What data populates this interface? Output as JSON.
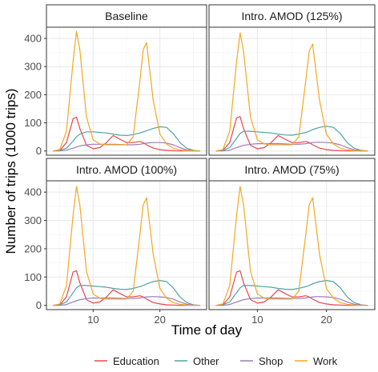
{
  "chart_data": {
    "type": "line",
    "ylabel": "Number of trips (1000 trips)",
    "xlabel": "Time of day",
    "xlim": [
      3,
      27
    ],
    "ylim": [
      -15,
      440
    ],
    "x_ticks": [
      10,
      20
    ],
    "y_ticks": [
      0,
      100,
      200,
      300,
      400
    ],
    "grid": true,
    "legend_position": "bottom",
    "colors": {
      "Education": "#e8474c",
      "Other": "#4fa3a5",
      "Shop": "#9b7bb8",
      "Work": "#f5a623"
    },
    "series_names": [
      "Education",
      "Other",
      "Shop",
      "Work"
    ],
    "x": [
      4,
      5,
      6,
      7,
      7.5,
      8,
      9,
      10,
      11,
      12,
      13,
      14,
      15,
      16,
      17,
      17.5,
      18,
      19,
      20,
      21,
      22,
      23,
      24,
      25,
      26
    ],
    "panels": [
      {
        "title": "Baseline",
        "series": [
          {
            "name": "Education",
            "values": [
              0,
              2,
              30,
              115,
              120,
              80,
              20,
              8,
              12,
              30,
              55,
              42,
              30,
              30,
              34,
              30,
              22,
              10,
              5,
              2,
              1,
              0,
              0,
              0,
              0
            ]
          },
          {
            "name": "Other",
            "values": [
              0,
              2,
              10,
              35,
              50,
              60,
              68,
              68,
              66,
              64,
              60,
              56,
              55,
              58,
              64,
              68,
              72,
              80,
              86,
              84,
              62,
              30,
              10,
              2,
              0
            ]
          },
          {
            "name": "Shop",
            "values": [
              0,
              0,
              3,
              10,
              14,
              18,
              22,
              24,
              24,
              24,
              24,
              23,
              22,
              22,
              24,
              26,
              28,
              30,
              30,
              28,
              22,
              12,
              4,
              1,
              0
            ]
          },
          {
            "name": "Work",
            "values": [
              0,
              5,
              70,
              320,
              425,
              360,
              120,
              40,
              25,
              22,
              22,
              22,
              22,
              50,
              250,
              360,
              385,
              180,
              60,
              25,
              10,
              4,
              1,
              0,
              0
            ]
          }
        ]
      },
      {
        "title": "Intro. AMOD (125%)",
        "series": [
          {
            "name": "Education",
            "values": [
              0,
              2,
              30,
              118,
              122,
              80,
              20,
              8,
              12,
              30,
              55,
              42,
              30,
              30,
              34,
              30,
              22,
              10,
              5,
              2,
              1,
              0,
              0,
              0,
              0
            ]
          },
          {
            "name": "Other",
            "values": [
              0,
              2,
              12,
              45,
              62,
              70,
              70,
              68,
              66,
              64,
              60,
              57,
              56,
              60,
              66,
              70,
              76,
              84,
              88,
              84,
              62,
              30,
              10,
              2,
              0
            ]
          },
          {
            "name": "Shop",
            "values": [
              0,
              0,
              3,
              12,
              16,
              20,
              24,
              26,
              26,
              26,
              26,
              25,
              24,
              24,
              26,
              28,
              30,
              31,
              30,
              28,
              22,
              12,
              4,
              1,
              0
            ]
          },
          {
            "name": "Work",
            "values": [
              0,
              5,
              70,
              320,
              420,
              355,
              120,
              40,
              25,
              22,
              22,
              22,
              22,
              50,
              250,
              355,
              380,
              180,
              60,
              25,
              10,
              4,
              1,
              0,
              0
            ]
          }
        ]
      },
      {
        "title": "Intro. AMOD (100%)",
        "series": [
          {
            "name": "Education",
            "values": [
              0,
              2,
              30,
              118,
              122,
              80,
              20,
              8,
              12,
              30,
              55,
              42,
              30,
              30,
              34,
              30,
              22,
              10,
              5,
              2,
              1,
              0,
              0,
              0,
              0
            ]
          },
          {
            "name": "Other",
            "values": [
              0,
              2,
              12,
              45,
              62,
              70,
              70,
              68,
              66,
              64,
              60,
              57,
              56,
              60,
              66,
              70,
              76,
              84,
              88,
              84,
              62,
              30,
              10,
              2,
              0
            ]
          },
          {
            "name": "Shop",
            "values": [
              0,
              0,
              3,
              12,
              16,
              20,
              24,
              26,
              26,
              26,
              26,
              25,
              24,
              24,
              26,
              28,
              30,
              31,
              30,
              28,
              22,
              12,
              4,
              1,
              0
            ]
          },
          {
            "name": "Work",
            "values": [
              0,
              5,
              70,
              320,
              420,
              355,
              120,
              40,
              25,
              22,
              22,
              22,
              22,
              50,
              250,
              355,
              380,
              180,
              60,
              25,
              10,
              4,
              1,
              0,
              0
            ]
          }
        ]
      },
      {
        "title": "Intro. AMOD (75%)",
        "series": [
          {
            "name": "Education",
            "values": [
              0,
              2,
              30,
              118,
              122,
              80,
              20,
              8,
              12,
              30,
              55,
              42,
              30,
              30,
              34,
              30,
              22,
              10,
              5,
              2,
              1,
              0,
              0,
              0,
              0
            ]
          },
          {
            "name": "Other",
            "values": [
              0,
              2,
              12,
              45,
              62,
              70,
              70,
              68,
              66,
              64,
              60,
              57,
              56,
              60,
              66,
              70,
              76,
              84,
              88,
              84,
              62,
              30,
              10,
              2,
              0
            ]
          },
          {
            "name": "Shop",
            "values": [
              0,
              0,
              3,
              12,
              16,
              20,
              24,
              26,
              26,
              26,
              26,
              25,
              24,
              24,
              26,
              28,
              30,
              31,
              30,
              28,
              22,
              12,
              4,
              1,
              0
            ]
          },
          {
            "name": "Work",
            "values": [
              0,
              5,
              70,
              320,
              420,
              355,
              120,
              40,
              25,
              22,
              22,
              22,
              22,
              50,
              250,
              355,
              380,
              180,
              60,
              25,
              10,
              4,
              1,
              0,
              0
            ]
          }
        ]
      }
    ]
  }
}
